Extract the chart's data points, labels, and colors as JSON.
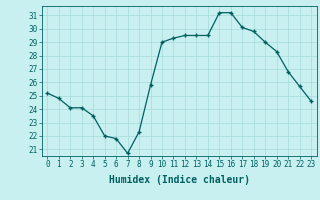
{
  "x": [
    0,
    1,
    2,
    3,
    4,
    5,
    6,
    7,
    8,
    9,
    10,
    11,
    12,
    13,
    14,
    15,
    16,
    17,
    18,
    19,
    20,
    21,
    22,
    23
  ],
  "y": [
    25.2,
    24.8,
    24.1,
    24.1,
    23.5,
    22.0,
    21.8,
    20.7,
    22.3,
    25.8,
    29.0,
    29.3,
    29.5,
    29.5,
    29.5,
    31.2,
    31.2,
    30.1,
    29.8,
    29.0,
    28.3,
    26.8,
    25.7,
    24.6
  ],
  "xlabel": "Humidex (Indice chaleur)",
  "ylim": [
    20.5,
    31.7
  ],
  "yticks": [
    21,
    22,
    23,
    24,
    25,
    26,
    27,
    28,
    29,
    30,
    31
  ],
  "xticks": [
    0,
    1,
    2,
    3,
    4,
    5,
    6,
    7,
    8,
    9,
    10,
    11,
    12,
    13,
    14,
    15,
    16,
    17,
    18,
    19,
    20,
    21,
    22,
    23
  ],
  "line_color": "#006060",
  "marker_color": "#006060",
  "bg_color": "#c8f0f0",
  "grid_color": "#a8dada",
  "font_color": "#006060",
  "tick_fontsize": 5.5,
  "xlabel_fontsize": 7.0
}
